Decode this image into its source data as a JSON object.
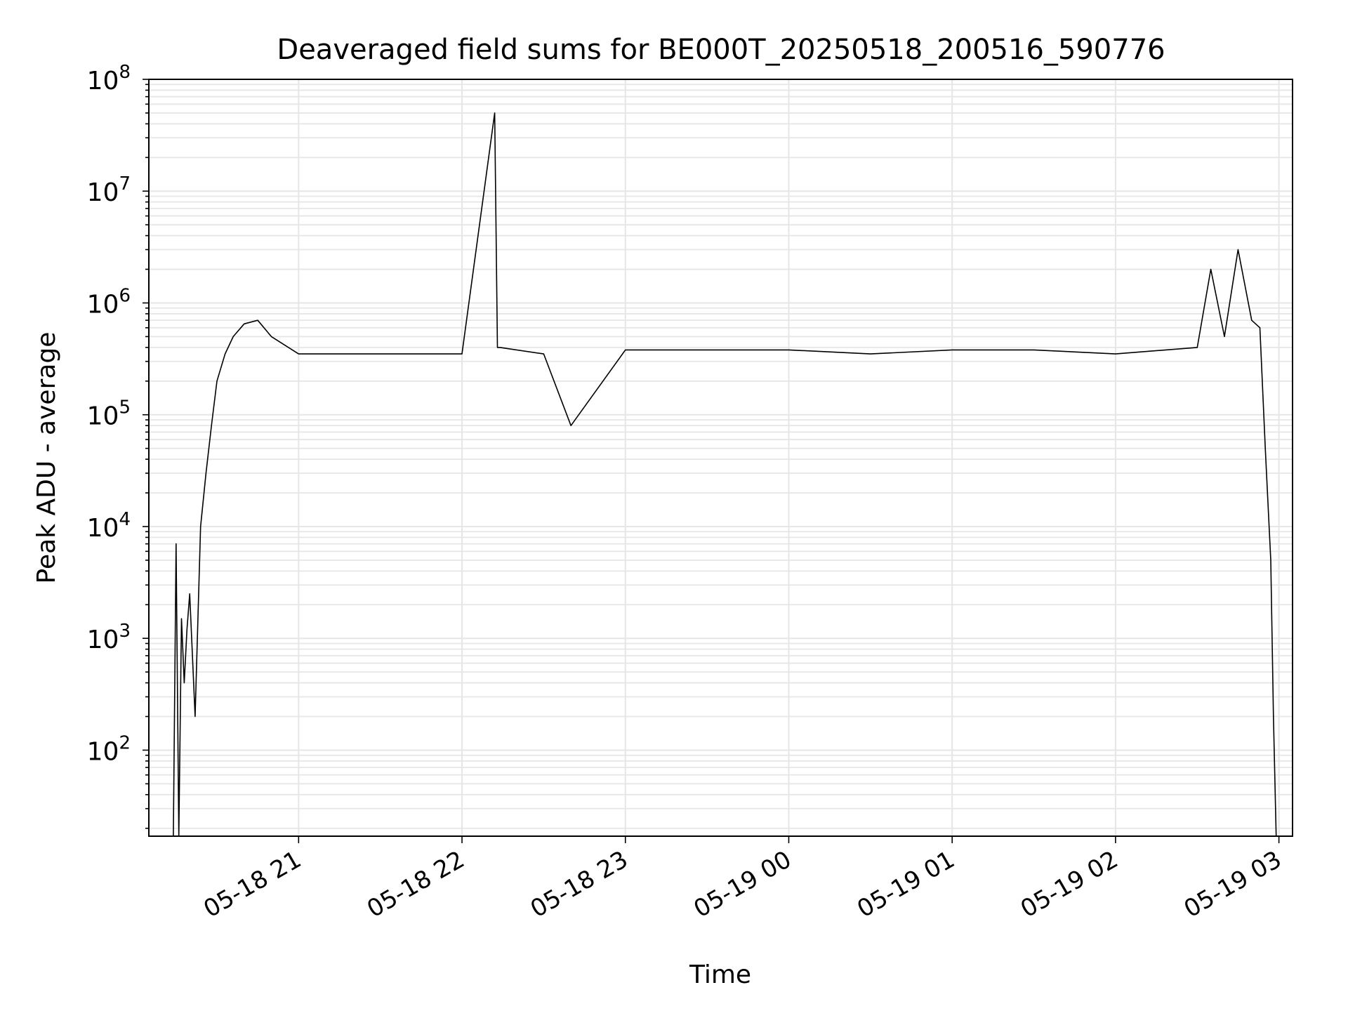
{
  "chart_data": {
    "type": "line",
    "title": "Deaveraged field sums for BE000T_20250518_200516_590776",
    "xlabel": "Time",
    "ylabel": "Peak ADU - average",
    "yscale": "log",
    "ylim": [
      17,
      100000000
    ],
    "xlim": [
      "05-18 20:05",
      "05-19 03:05"
    ],
    "grid": true,
    "x_ticks": [
      "05-18 21",
      "05-18 22",
      "05-18 23",
      "05-19 00",
      "05-19 01",
      "05-19 02",
      "05-19 03"
    ],
    "y_ticks": [
      {
        "base": "10",
        "exp": "2",
        "value": 100
      },
      {
        "base": "10",
        "exp": "3",
        "value": 1000
      },
      {
        "base": "10",
        "exp": "4",
        "value": 10000
      },
      {
        "base": "10",
        "exp": "5",
        "value": 100000
      },
      {
        "base": "10",
        "exp": "6",
        "value": 1000000
      },
      {
        "base": "10",
        "exp": "7",
        "value": 10000000
      },
      {
        "base": "10",
        "exp": "8",
        "value": 100000000
      }
    ],
    "line_color": "#000000",
    "grid_color": "#e6e6e6",
    "series": [
      {
        "x": [
          "05-18 20:14",
          "05-18 20:15",
          "05-18 20:16",
          "05-18 20:17",
          "05-18 20:18",
          "05-18 20:19",
          "05-18 20:20",
          "05-18 20:22",
          "05-18 20:24",
          "05-18 20:26",
          "05-18 20:28",
          "05-18 20:30",
          "05-18 20:33",
          "05-18 20:36",
          "05-18 20:40",
          "05-18 20:45",
          "05-18 20:50",
          "05-18 21:00",
          "05-18 21:30",
          "05-18 22:00",
          "05-18 22:12",
          "05-18 22:13",
          "05-18 22:14",
          "05-18 22:30",
          "05-18 22:40",
          "05-18 23:00",
          "05-18 23:30",
          "05-19 00:00",
          "05-19 00:30",
          "05-19 01:00",
          "05-19 01:30",
          "05-19 02:00",
          "05-19 02:30",
          "05-19 02:35",
          "05-19 02:40",
          "05-19 02:45",
          "05-19 02:50",
          "05-19 02:53",
          "05-19 02:55",
          "05-19 02:57",
          "05-19 02:58",
          "05-19 02:59"
        ],
        "y": [
          17,
          7000,
          17,
          1500,
          400,
          1200,
          2500,
          200,
          10000,
          30000,
          80000,
          200000,
          350000,
          500000,
          650000,
          700000,
          500000,
          350000,
          350000,
          350000,
          50000000,
          400000,
          400000,
          350000,
          80000,
          380000,
          380000,
          380000,
          350000,
          380000,
          380000,
          350000,
          400000,
          2000000,
          500000,
          3000000,
          700000,
          600000,
          50000,
          5000,
          200,
          17
        ]
      }
    ]
  }
}
